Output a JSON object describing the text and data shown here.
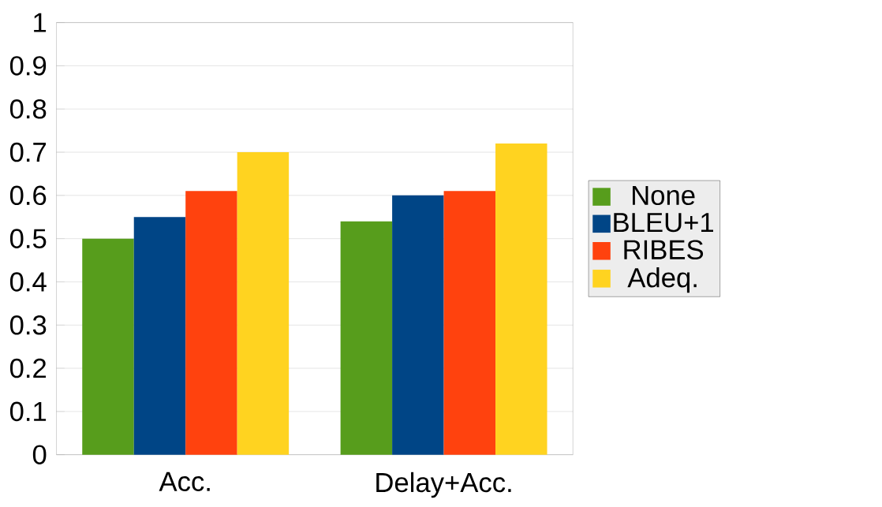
{
  "chart_data": {
    "type": "bar",
    "categories": [
      "Acc.",
      "Delay+Acc."
    ],
    "series": [
      {
        "name": "None",
        "color": "#579d1c",
        "values": [
          0.5,
          0.54
        ]
      },
      {
        "name": "BLEU+1",
        "color": "#004586",
        "values": [
          0.55,
          0.6
        ]
      },
      {
        "name": "RIBES",
        "color": "#ff420e",
        "values": [
          0.61,
          0.61
        ]
      },
      {
        "name": "Adeq.",
        "color": "#ffd320",
        "values": [
          0.7,
          0.72
        ]
      }
    ],
    "ylim": [
      0,
      1
    ],
    "yticks": [
      0,
      0.1,
      0.2,
      0.3,
      0.4,
      0.5,
      0.6,
      0.7,
      0.8,
      0.9,
      1
    ],
    "grid": "y",
    "legend": "right"
  }
}
